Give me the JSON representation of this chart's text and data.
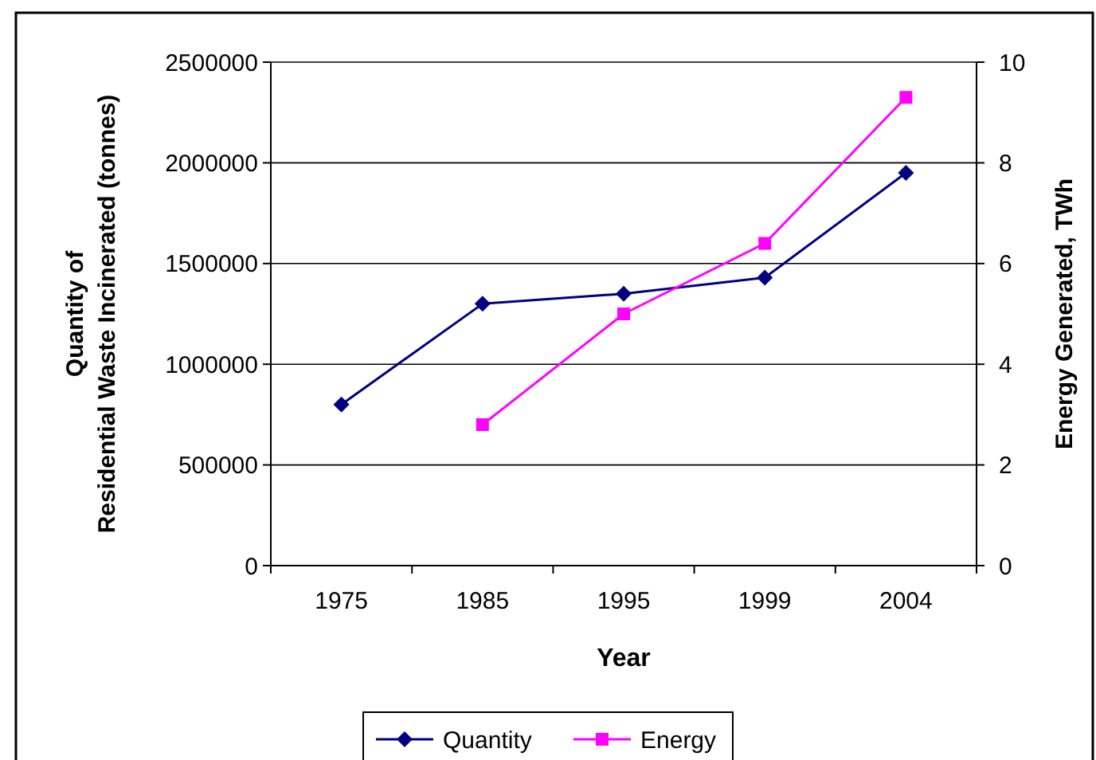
{
  "chart_data": {
    "type": "line",
    "xlabel": "Year",
    "ylabel": "Quantity of Residential Waste Incinerated (tonnes)",
    "y2label": "Energy Generated, TWh",
    "categories": [
      "1975",
      "1985",
      "1995",
      "1999",
      "2004"
    ],
    "series": [
      {
        "name": "Quantity",
        "color": "#000080",
        "values": [
          800000,
          1300000,
          1350000,
          1430000,
          1950000
        ],
        "marker": "diamond"
      },
      {
        "name": "Energy",
        "color": "#ff00ff",
        "values": [
          null,
          2.8,
          5.0,
          6.4,
          9.3
        ],
        "axis": "y2",
        "marker": "square"
      }
    ],
    "ylim": [
      0,
      2500000
    ],
    "yticks": [
      0,
      500000,
      1000000,
      1500000,
      2000000,
      2500000
    ],
    "y2lim": [
      0,
      10
    ],
    "y2ticks": [
      0,
      2,
      4,
      6,
      8,
      10
    ],
    "grid": "y",
    "legend": "bottom",
    "line_style": "solid"
  }
}
